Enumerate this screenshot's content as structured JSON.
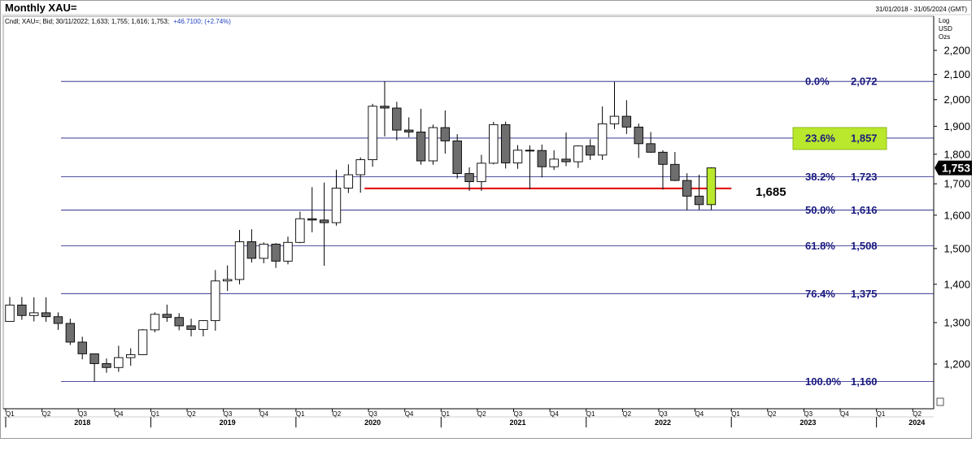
{
  "header": {
    "title": "Monthly XAU=",
    "date_range": "31/01/2018 - 31/05/2024 (GMT)",
    "legend_prefix": "Cndl; XAU=; Bid; 30/11/2022; 1,633; 1,755; 1,616; 1,753;",
    "legend_change": "+46.7100; (+2.74%)"
  },
  "units": [
    "Log",
    "USD",
    "Ozs"
  ],
  "colors": {
    "fib_line": "#1a1a80",
    "support_line": "#e00000",
    "highlight": "#b9e82c",
    "bear_fill": "#6e6e6e",
    "bull_fill": "#ffffff",
    "price_box": "#000000"
  },
  "chart_data": {
    "type": "candlestick",
    "title": "Monthly XAU=",
    "y_scale": "log",
    "ylim": [
      1140,
      2250
    ],
    "xlim": [
      "2018-01",
      "2024-05"
    ],
    "y_ticks": [
      1200,
      1300,
      1400,
      1500,
      1600,
      1700,
      1800,
      1900,
      2000,
      2100,
      2200
    ],
    "y_tick_labels": [
      "1,200",
      "1,300",
      "1,400",
      "1,500",
      "1,600",
      "1,700",
      "1,800",
      "1,900",
      "2,000",
      "2,100",
      "2,200"
    ],
    "quarter_labels": [
      {
        "month": "2018-01",
        "label": "Q1"
      },
      {
        "month": "2018-04",
        "label": "Q2"
      },
      {
        "month": "2018-07",
        "label": "Q3"
      },
      {
        "month": "2018-10",
        "label": "Q4"
      },
      {
        "month": "2019-01",
        "label": "Q1"
      },
      {
        "month": "2019-04",
        "label": "Q2"
      },
      {
        "month": "2019-07",
        "label": "Q3"
      },
      {
        "month": "2019-10",
        "label": "Q4"
      },
      {
        "month": "2020-01",
        "label": "Q1"
      },
      {
        "month": "2020-04",
        "label": "Q2"
      },
      {
        "month": "2020-07",
        "label": "Q3"
      },
      {
        "month": "2020-10",
        "label": "Q4"
      },
      {
        "month": "2021-01",
        "label": "Q1"
      },
      {
        "month": "2021-04",
        "label": "Q2"
      },
      {
        "month": "2021-07",
        "label": "Q3"
      },
      {
        "month": "2021-10",
        "label": "Q4"
      },
      {
        "month": "2022-01",
        "label": "Q1"
      },
      {
        "month": "2022-04",
        "label": "Q2"
      },
      {
        "month": "2022-07",
        "label": "Q3"
      },
      {
        "month": "2022-10",
        "label": "Q4"
      },
      {
        "month": "2023-01",
        "label": "Q1"
      },
      {
        "month": "2023-04",
        "label": "Q2"
      },
      {
        "month": "2023-07",
        "label": "Q3"
      },
      {
        "month": "2023-10",
        "label": "Q4"
      },
      {
        "month": "2024-01",
        "label": "Q1"
      },
      {
        "month": "2024-04",
        "label": "Q2"
      }
    ],
    "year_labels": [
      {
        "month": "2018-07",
        "label": "2018"
      },
      {
        "month": "2019-07",
        "label": "2019"
      },
      {
        "month": "2020-07",
        "label": "2020"
      },
      {
        "month": "2021-07",
        "label": "2021"
      },
      {
        "month": "2022-07",
        "label": "2022"
      },
      {
        "month": "2023-07",
        "label": "2023"
      },
      {
        "month": "2024-04",
        "label": "2024"
      }
    ],
    "candles": [
      {
        "month": "2018-01",
        "open": 1303,
        "high": 1366,
        "low": 1303,
        "close": 1345
      },
      {
        "month": "2018-02",
        "open": 1345,
        "high": 1366,
        "low": 1307,
        "close": 1318
      },
      {
        "month": "2018-03",
        "open": 1318,
        "high": 1365,
        "low": 1303,
        "close": 1325
      },
      {
        "month": "2018-04",
        "open": 1325,
        "high": 1365,
        "low": 1302,
        "close": 1315
      },
      {
        "month": "2018-05",
        "open": 1315,
        "high": 1326,
        "low": 1282,
        "close": 1298
      },
      {
        "month": "2018-06",
        "open": 1298,
        "high": 1310,
        "low": 1245,
        "close": 1252
      },
      {
        "month": "2018-07",
        "open": 1252,
        "high": 1265,
        "low": 1211,
        "close": 1224
      },
      {
        "month": "2018-08",
        "open": 1224,
        "high": 1218,
        "low": 1160,
        "close": 1201
      },
      {
        "month": "2018-09",
        "open": 1201,
        "high": 1213,
        "low": 1180,
        "close": 1192
      },
      {
        "month": "2018-10",
        "open": 1192,
        "high": 1243,
        "low": 1182,
        "close": 1215
      },
      {
        "month": "2018-11",
        "open": 1215,
        "high": 1237,
        "low": 1196,
        "close": 1222
      },
      {
        "month": "2018-12",
        "open": 1222,
        "high": 1284,
        "low": 1221,
        "close": 1282
      },
      {
        "month": "2019-01",
        "open": 1282,
        "high": 1326,
        "low": 1276,
        "close": 1321
      },
      {
        "month": "2019-02",
        "open": 1321,
        "high": 1346,
        "low": 1302,
        "close": 1313
      },
      {
        "month": "2019-03",
        "open": 1313,
        "high": 1324,
        "low": 1281,
        "close": 1292
      },
      {
        "month": "2019-04",
        "open": 1292,
        "high": 1310,
        "low": 1266,
        "close": 1283
      },
      {
        "month": "2019-05",
        "open": 1283,
        "high": 1306,
        "low": 1266,
        "close": 1305
      },
      {
        "month": "2019-06",
        "open": 1305,
        "high": 1439,
        "low": 1280,
        "close": 1409
      },
      {
        "month": "2019-07",
        "open": 1409,
        "high": 1452,
        "low": 1382,
        "close": 1413
      },
      {
        "month": "2019-08",
        "open": 1413,
        "high": 1555,
        "low": 1400,
        "close": 1520
      },
      {
        "month": "2019-09",
        "open": 1520,
        "high": 1557,
        "low": 1460,
        "close": 1472
      },
      {
        "month": "2019-10",
        "open": 1472,
        "high": 1518,
        "low": 1458,
        "close": 1513
      },
      {
        "month": "2019-11",
        "open": 1513,
        "high": 1516,
        "low": 1445,
        "close": 1464
      },
      {
        "month": "2019-12",
        "open": 1464,
        "high": 1535,
        "low": 1455,
        "close": 1518
      },
      {
        "month": "2020-01",
        "open": 1518,
        "high": 1611,
        "low": 1516,
        "close": 1589
      },
      {
        "month": "2020-02",
        "open": 1589,
        "high": 1689,
        "low": 1548,
        "close": 1585
      },
      {
        "month": "2020-03",
        "open": 1585,
        "high": 1704,
        "low": 1451,
        "close": 1577
      },
      {
        "month": "2020-04",
        "open": 1577,
        "high": 1747,
        "low": 1568,
        "close": 1686
      },
      {
        "month": "2020-05",
        "open": 1686,
        "high": 1765,
        "low": 1670,
        "close": 1730
      },
      {
        "month": "2020-06",
        "open": 1730,
        "high": 1789,
        "low": 1671,
        "close": 1781
      },
      {
        "month": "2020-07",
        "open": 1781,
        "high": 1984,
        "low": 1757,
        "close": 1975
      },
      {
        "month": "2020-08",
        "open": 1975,
        "high": 2072,
        "low": 1863,
        "close": 1968
      },
      {
        "month": "2020-09",
        "open": 1968,
        "high": 1992,
        "low": 1849,
        "close": 1886
      },
      {
        "month": "2020-10",
        "open": 1886,
        "high": 1933,
        "low": 1860,
        "close": 1879
      },
      {
        "month": "2020-11",
        "open": 1879,
        "high": 1965,
        "low": 1764,
        "close": 1777
      },
      {
        "month": "2020-12",
        "open": 1777,
        "high": 1906,
        "low": 1764,
        "close": 1895
      },
      {
        "month": "2021-01",
        "open": 1895,
        "high": 1959,
        "low": 1802,
        "close": 1847
      },
      {
        "month": "2021-02",
        "open": 1847,
        "high": 1871,
        "low": 1717,
        "close": 1734
      },
      {
        "month": "2021-03",
        "open": 1734,
        "high": 1755,
        "low": 1677,
        "close": 1707
      },
      {
        "month": "2021-04",
        "open": 1707,
        "high": 1798,
        "low": 1677,
        "close": 1769
      },
      {
        "month": "2021-05",
        "open": 1769,
        "high": 1916,
        "low": 1765,
        "close": 1906
      },
      {
        "month": "2021-06",
        "open": 1906,
        "high": 1917,
        "low": 1751,
        "close": 1770
      },
      {
        "month": "2021-07",
        "open": 1770,
        "high": 1832,
        "low": 1750,
        "close": 1814
      },
      {
        "month": "2021-08",
        "open": 1814,
        "high": 1831,
        "low": 1682,
        "close": 1813
      },
      {
        "month": "2021-09",
        "open": 1813,
        "high": 1834,
        "low": 1721,
        "close": 1757
      },
      {
        "month": "2021-10",
        "open": 1757,
        "high": 1814,
        "low": 1746,
        "close": 1783
      },
      {
        "month": "2021-11",
        "open": 1783,
        "high": 1877,
        "low": 1759,
        "close": 1774
      },
      {
        "month": "2021-12",
        "open": 1774,
        "high": 1831,
        "low": 1753,
        "close": 1829
      },
      {
        "month": "2022-01",
        "open": 1829,
        "high": 1853,
        "low": 1780,
        "close": 1797
      },
      {
        "month": "2022-02",
        "open": 1797,
        "high": 1974,
        "low": 1780,
        "close": 1909
      },
      {
        "month": "2022-03",
        "open": 1909,
        "high": 2070,
        "low": 1890,
        "close": 1937
      },
      {
        "month": "2022-04",
        "open": 1937,
        "high": 1998,
        "low": 1872,
        "close": 1897
      },
      {
        "month": "2022-05",
        "open": 1897,
        "high": 1910,
        "low": 1787,
        "close": 1837
      },
      {
        "month": "2022-06",
        "open": 1837,
        "high": 1879,
        "low": 1805,
        "close": 1807
      },
      {
        "month": "2022-07",
        "open": 1807,
        "high": 1814,
        "low": 1681,
        "close": 1765
      },
      {
        "month": "2022-08",
        "open": 1765,
        "high": 1808,
        "low": 1709,
        "close": 1711
      },
      {
        "month": "2022-09",
        "open": 1711,
        "high": 1735,
        "low": 1615,
        "close": 1660
      },
      {
        "month": "2022-10",
        "open": 1660,
        "high": 1730,
        "low": 1617,
        "close": 1633
      },
      {
        "month": "2022-11",
        "open": 1633,
        "high": 1755,
        "low": 1616,
        "close": 1753,
        "highlight": true
      }
    ],
    "last_price_label": "1,753",
    "last_price": 1753,
    "fib_levels": [
      {
        "label": "0.0%",
        "value": 2072,
        "value_label": "2,072",
        "highlight": false
      },
      {
        "label": "23.6%",
        "value": 1857,
        "value_label": "1,857",
        "highlight": true
      },
      {
        "label": "38.2%",
        "value": 1723,
        "value_label": "1,723",
        "highlight": false
      },
      {
        "label": "50.0%",
        "value": 1616,
        "value_label": "1,616",
        "highlight": false
      },
      {
        "label": "61.8%",
        "value": 1508,
        "value_label": "1,508",
        "highlight": false
      },
      {
        "label": "76.4%",
        "value": 1375,
        "value_label": "1,375",
        "highlight": false
      },
      {
        "label": "100.0%",
        "value": 1160,
        "value_label": "1,160",
        "highlight": false
      }
    ],
    "support": {
      "value": 1685,
      "label": "1,685",
      "start_month": "2020-06",
      "end_month": "2022-12"
    }
  }
}
